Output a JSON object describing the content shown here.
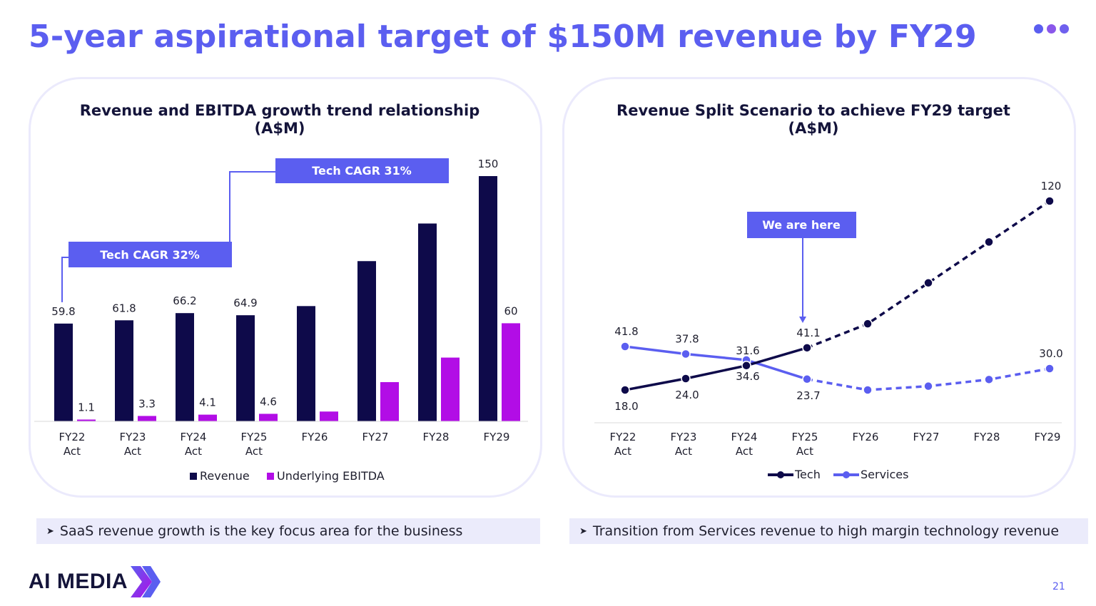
{
  "title": "5-year aspirational target of $150M revenue by FY29",
  "page_number": "21",
  "logo": {
    "text": "AI MEDIA",
    "icon": "double-chevron-icon"
  },
  "colors": {
    "accent": "#5b5ef0",
    "navy": "#0e0a4a",
    "magenta": "#b20de6",
    "dots": [
      "#5b5ef0",
      "#8a57ea",
      "#6f60ee"
    ]
  },
  "bullets": {
    "left": "SaaS revenue growth is the key focus area for the business",
    "right": "Transition from Services revenue to high margin technology revenue"
  },
  "chart_data": [
    {
      "type": "bar",
      "title": "Revenue and EBITDA growth trend relationship",
      "title_line2": "(A$M)",
      "categories": [
        "FY22\nAct",
        "FY23\nAct",
        "FY24\nAct",
        "FY25\nAct",
        "FY26",
        "FY27",
        "FY28",
        "FY29"
      ],
      "series": [
        {
          "name": "Revenue",
          "values": [
            59.8,
            61.8,
            66.2,
            64.9,
            70.5,
            98,
            121,
            150
          ],
          "labels": [
            "59.8",
            "61.8",
            "66.2",
            "64.9",
            "",
            "",
            "",
            "150"
          ]
        },
        {
          "name": "Underlying EBITDA",
          "values": [
            1.1,
            3.3,
            4.1,
            4.6,
            6,
            24,
            39,
            60
          ],
          "labels": [
            "1.1",
            "3.3",
            "4.1",
            "4.6",
            "",
            "",
            "",
            "60"
          ]
        }
      ],
      "ylim": [
        0,
        150
      ],
      "legend_position": "bottom",
      "annotations": [
        "Tech CAGR 32%",
        "Tech CAGR 31%"
      ]
    },
    {
      "type": "line",
      "title": "Revenue Split Scenario to achieve FY29 target",
      "title_line2": "(A$M)",
      "categories": [
        "FY22\nAct",
        "FY23\nAct",
        "FY24\nAct",
        "FY25\nAct",
        "FY26",
        "FY27",
        "FY28",
        "FY29"
      ],
      "series": [
        {
          "name": "Tech",
          "values": [
            18.0,
            24.0,
            31.6,
            41.1,
            54,
            76,
            98,
            120
          ],
          "labels": [
            "18.0",
            "24.0",
            "31.6",
            "41.1",
            "",
            "",
            "",
            "120"
          ],
          "actual_count": 4
        },
        {
          "name": "Services",
          "values": [
            41.8,
            37.8,
            34.6,
            23.7,
            18,
            20,
            23.5,
            30.0
          ],
          "labels": [
            "41.8",
            "37.8",
            "34.6",
            "23.7",
            "",
            "",
            "",
            "30.0"
          ],
          "actual_count": 4
        }
      ],
      "ylim": [
        0,
        120
      ],
      "legend_position": "bottom",
      "annotations": [
        "We are here"
      ]
    }
  ]
}
